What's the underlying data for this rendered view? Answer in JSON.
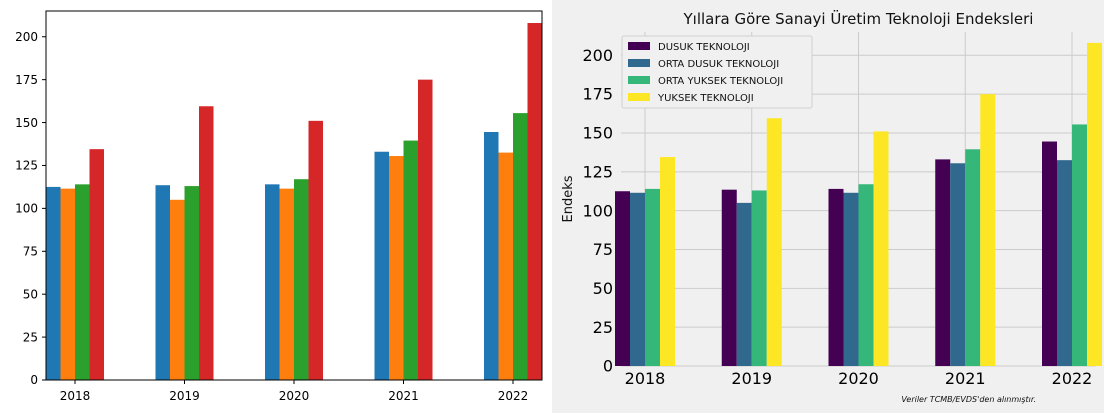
{
  "chart_data": [
    {
      "type": "bar",
      "title": "",
      "xlabel": "",
      "ylabel": "",
      "categories": [
        "2018",
        "2019",
        "2020",
        "2021",
        "2022"
      ],
      "ylim": [
        0,
        215
      ],
      "yticks": [
        0,
        25,
        50,
        75,
        100,
        125,
        150,
        175,
        200
      ],
      "grid": false,
      "legend": "none",
      "series": [
        {
          "color": "#1f77b4",
          "values": [
            112.5,
            113.5,
            114.0,
            133.0,
            144.5
          ]
        },
        {
          "color": "#ff7f0e",
          "values": [
            111.5,
            105.0,
            111.5,
            130.5,
            132.5
          ]
        },
        {
          "color": "#2ca02c",
          "values": [
            114.0,
            113.0,
            117.0,
            139.5,
            155.5
          ]
        },
        {
          "color": "#d62728",
          "values": [
            134.5,
            159.5,
            151.0,
            175.0,
            208.0
          ]
        }
      ]
    },
    {
      "type": "bar",
      "title": "Yıllara Göre Sanayi Üretim Teknoloji Endeksleri",
      "xlabel": "",
      "ylabel": "Endeks",
      "categories": [
        "2018",
        "2019",
        "2020",
        "2021",
        "2022"
      ],
      "ylim": [
        0,
        215
      ],
      "yticks": [
        0,
        25,
        50,
        75,
        100,
        125,
        150,
        175,
        200
      ],
      "grid": true,
      "legend": "top-left",
      "annotation": "Veriler TCMB/EVDS'den alınmıştır.",
      "series": [
        {
          "name": "DUSUK TEKNOLOJI",
          "color": "#440154",
          "values": [
            112.5,
            113.5,
            114.0,
            133.0,
            144.5
          ]
        },
        {
          "name": "ORTA DUSUK TEKNOLOJI",
          "color": "#31688e",
          "values": [
            111.5,
            105.0,
            111.5,
            130.5,
            132.5
          ]
        },
        {
          "name": "ORTA YUKSEK TEKNOLOJI",
          "color": "#35b779",
          "values": [
            114.0,
            113.0,
            117.0,
            139.5,
            155.5
          ]
        },
        {
          "name": "YUKSEK TEKNOLOJI",
          "color": "#fde725",
          "values": [
            134.5,
            159.5,
            151.0,
            175.0,
            208.0
          ]
        }
      ]
    }
  ]
}
